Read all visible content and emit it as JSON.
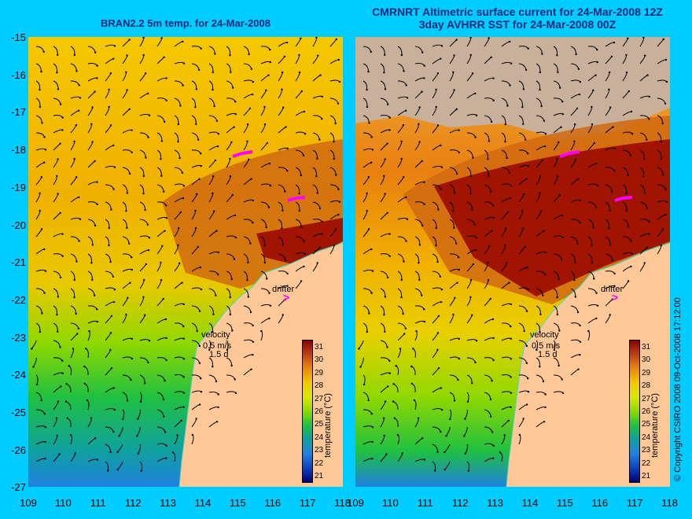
{
  "left_panel": {
    "title": "BRAN2.2 5m temp. for 24-Mar-2008",
    "velocity_label": "velocity",
    "velocity_scale": "0.5 m/s",
    "velocity_days": "1.5 d",
    "drifter_label": "drifter",
    "colorbar_title": "temperature (°C)"
  },
  "right_panel": {
    "title_line1": "CMRNRT Altimetric surface current for 24-Mar-2008 12Z",
    "title_line2": "3day AVHRR SST for 24-Mar-2008 00Z",
    "velocity_label": "velocity",
    "velocity_scale": "0.5 m/s",
    "velocity_days": "1.5 d",
    "drifter_label": "drifter",
    "colorbar_title": "temperature (°C)"
  },
  "copyright": "© Copyright CSIRO 2008   09-Oct-2008 17:12:00",
  "axes": {
    "y_ticks": [
      "-15",
      "-16",
      "-17",
      "-18",
      "-19",
      "-20",
      "-21",
      "-22",
      "-23",
      "-24",
      "-25",
      "-26",
      "-27"
    ],
    "x_ticks": [
      "109",
      "110",
      "111",
      "112",
      "113",
      "114",
      "115",
      "116",
      "117",
      "118"
    ]
  },
  "colorbar": {
    "labels": [
      "31",
      "30",
      "29",
      "28",
      "27",
      "26",
      "25",
      "24",
      "23",
      "22",
      "21"
    ],
    "colors": [
      "#8b0000",
      "#c0401a",
      "#e88a10",
      "#f5c800",
      "#d8e800",
      "#8fd800",
      "#20c040",
      "#10a0a0",
      "#2080e0",
      "#1040c0",
      "#000070"
    ]
  },
  "colors": {
    "land": "#ffc896",
    "missing": "#c8b09a",
    "coastline": "#40e0d0"
  }
}
